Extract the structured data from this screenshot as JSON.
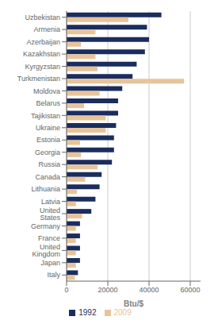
{
  "chart_data": {
    "type": "bar",
    "orientation": "horizontal",
    "xlabel": "Btu/$",
    "categories": [
      "Uzbekistan",
      "Armenia",
      "Azerbaijan",
      "Kazakhstan",
      "Kyrgyzstan",
      "Turkmenistan",
      "Moldova",
      "Belarus",
      "Tajikistan",
      "Ukraine",
      "Estonia",
      "Georgia",
      "Russia",
      "Canada",
      "Lithuania",
      "Latvia",
      "United States",
      "Germany",
      "France",
      "United Kingdom",
      "Japan",
      "Italy"
    ],
    "series": [
      {
        "name": "1992",
        "color": "#1b2d5e",
        "values": [
          46000,
          39000,
          40000,
          38000,
          34000,
          32000,
          27000,
          25000,
          25000,
          24000,
          23000,
          23000,
          22000,
          17000,
          16000,
          14000,
          12000,
          6500,
          6500,
          6500,
          6500,
          5500
        ]
      },
      {
        "name": "2009",
        "color": "#e8c49a",
        "values": [
          30000,
          14000,
          7000,
          14000,
          15000,
          57000,
          16000,
          8500,
          19000,
          19000,
          6500,
          7000,
          15000,
          9000,
          5000,
          4500,
          7500,
          4500,
          4500,
          4500,
          4500,
          4000
        ]
      }
    ],
    "xlim": [
      0,
      65000
    ],
    "xticks": [
      0,
      20000,
      40000,
      60000
    ],
    "grid": true,
    "legend": "bottom"
  }
}
